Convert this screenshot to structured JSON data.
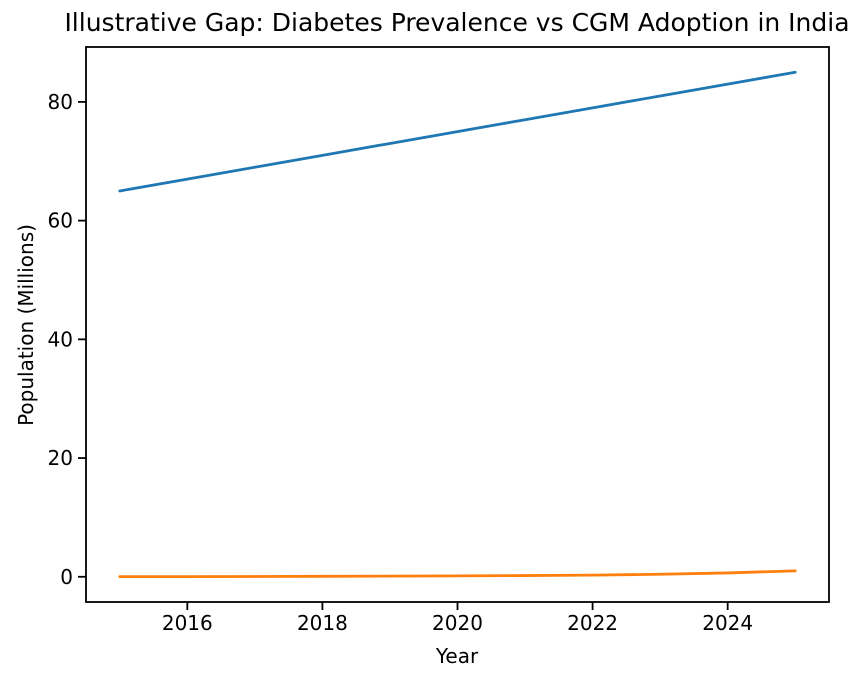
{
  "chart_data": {
    "type": "line",
    "title": "Illustrative Gap: Diabetes Prevalence vs CGM Adoption in India",
    "xlabel": "Year",
    "ylabel": "Population (Millions)",
    "x": [
      2015,
      2016,
      2017,
      2018,
      2019,
      2020,
      2021,
      2022,
      2023,
      2024,
      2025
    ],
    "series": [
      {
        "name": "Diabetes Prevalence",
        "color": "#1f77b4",
        "values": [
          65,
          67,
          69,
          71,
          73,
          75,
          77,
          79,
          81,
          83,
          85
        ]
      },
      {
        "name": "CGM Adoption",
        "color": "#ff7f0e",
        "values": [
          0.02,
          0.03,
          0.05,
          0.08,
          0.11,
          0.15,
          0.2,
          0.28,
          0.42,
          0.65,
          1.0
        ]
      }
    ],
    "x_ticks": [
      2016,
      2018,
      2020,
      2022,
      2024
    ],
    "y_ticks": [
      0,
      20,
      40,
      60,
      80
    ],
    "xlim": [
      2014.5,
      2025.5
    ],
    "ylim": [
      -4.25,
      89.25
    ],
    "grid": false,
    "legend": "none",
    "axis_color": "#000000",
    "background": "#ffffff"
  }
}
